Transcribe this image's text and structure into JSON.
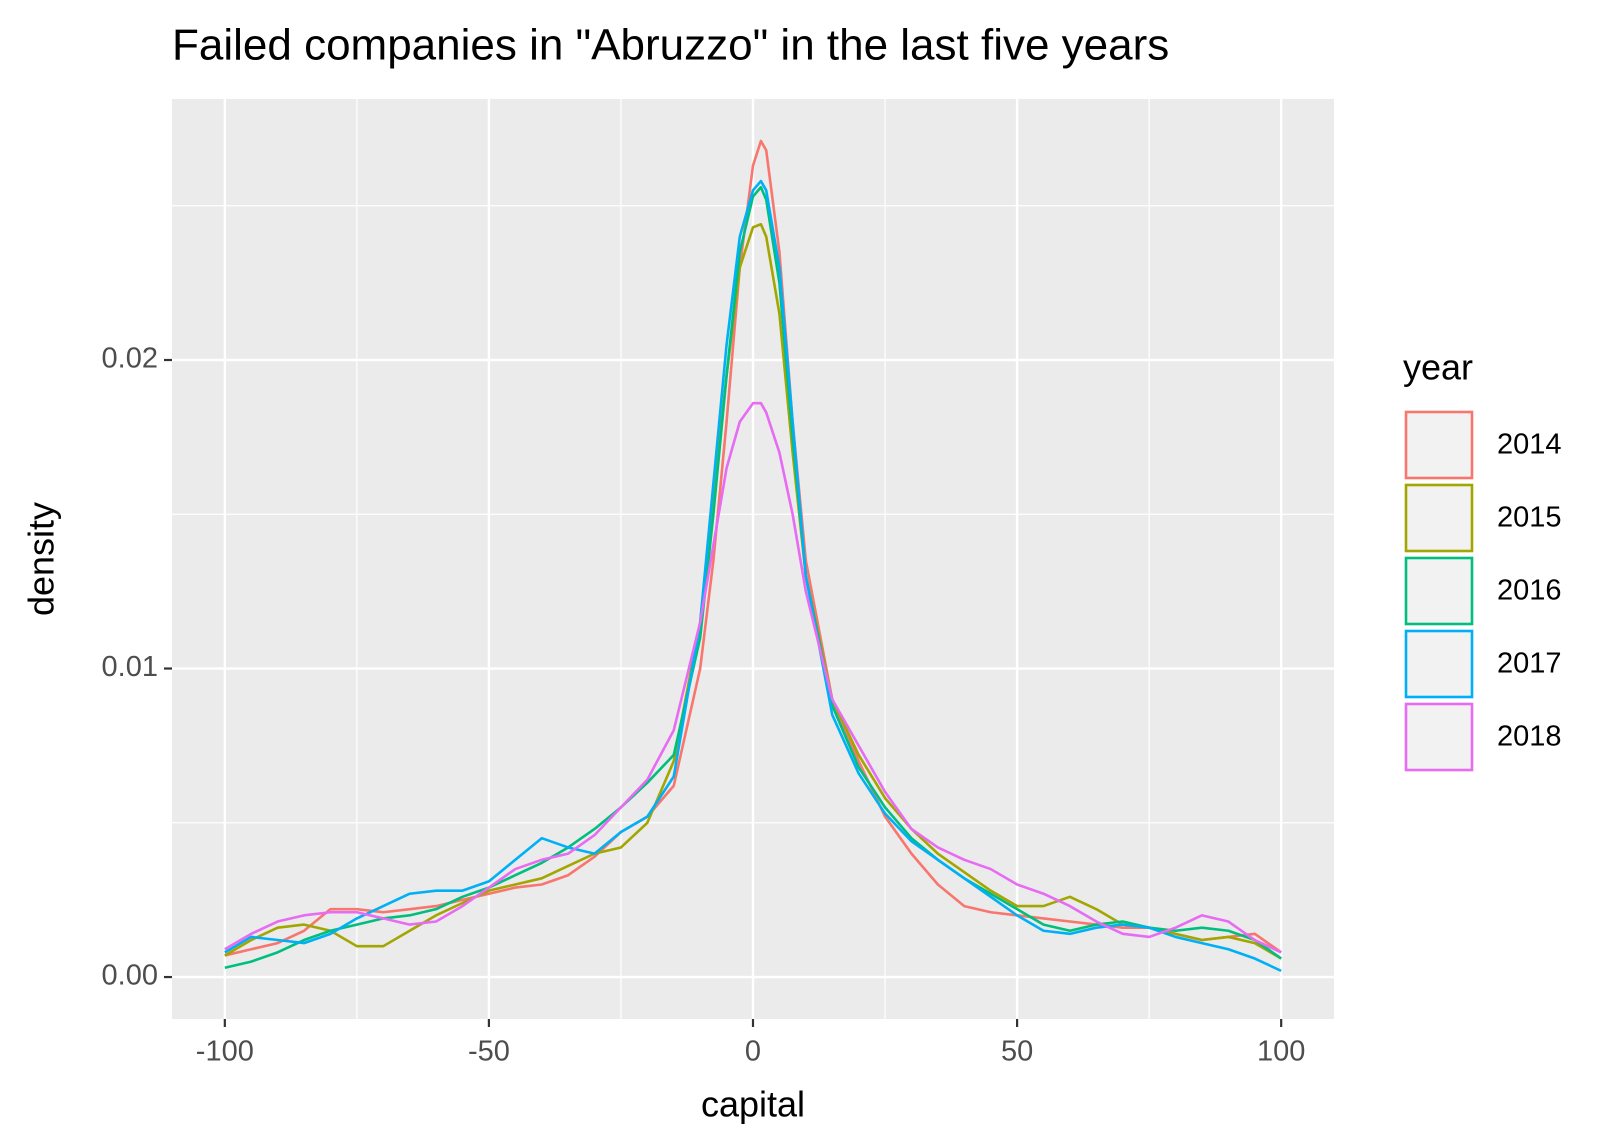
{
  "chart_data": {
    "type": "line",
    "title": "Failed companies in \"Abruzzo\" in the last five years",
    "x_label": "capital",
    "y_label": "density",
    "legend_title": "year",
    "legend_position": "right",
    "grid": true,
    "xlim": [
      -110,
      110
    ],
    "ylim": [
      -0.00136,
      0.02846
    ],
    "xticks": [
      -100,
      -50,
      0,
      50,
      100
    ],
    "yticks": [
      {
        "value": 0,
        "label": "0.00"
      },
      0.01,
      0.02
    ],
    "x_minor_grid": [
      -75,
      -25,
      25,
      75
    ],
    "y_minor_grid": [
      0.005,
      0.015,
      0.025
    ],
    "x": [
      -100,
      -95,
      -90,
      -85,
      -80,
      -75,
      -70,
      -65,
      -60,
      -55,
      -50,
      -45,
      -40,
      -35,
      -30,
      -25,
      -20,
      -15,
      -10,
      -7.5,
      -5,
      -2.5,
      0,
      1.5,
      2.5,
      5,
      7.5,
      10,
      15,
      20,
      25,
      30,
      35,
      40,
      45,
      50,
      55,
      60,
      65,
      70,
      75,
      80,
      85,
      90,
      95,
      100
    ],
    "series": [
      {
        "name": "2014",
        "color": "#F8766D",
        "values": [
          0.0007,
          0.0009,
          0.0011,
          0.0015,
          0.0022,
          0.0022,
          0.0021,
          0.0022,
          0.0023,
          0.0025,
          0.0027,
          0.0029,
          0.003,
          0.0033,
          0.0039,
          0.0047,
          0.0052,
          0.0062,
          0.01,
          0.0135,
          0.018,
          0.023,
          0.0263,
          0.0271,
          0.0268,
          0.0235,
          0.018,
          0.0135,
          0.009,
          0.007,
          0.0052,
          0.004,
          0.003,
          0.0023,
          0.0021,
          0.002,
          0.0019,
          0.0018,
          0.0017,
          0.0016,
          0.0016,
          0.0014,
          0.0012,
          0.0013,
          0.0014,
          0.0008
        ]
      },
      {
        "name": "2015",
        "color": "#A3A500",
        "values": [
          0.0007,
          0.0012,
          0.0016,
          0.0017,
          0.0015,
          0.001,
          0.001,
          0.0015,
          0.002,
          0.0024,
          0.0028,
          0.003,
          0.0032,
          0.0036,
          0.004,
          0.0042,
          0.005,
          0.007,
          0.0115,
          0.0155,
          0.0195,
          0.023,
          0.0243,
          0.0244,
          0.024,
          0.0215,
          0.017,
          0.013,
          0.009,
          0.0072,
          0.0058,
          0.0048,
          0.004,
          0.0034,
          0.0028,
          0.0023,
          0.0023,
          0.0026,
          0.0022,
          0.0017,
          0.0016,
          0.0014,
          0.0012,
          0.0013,
          0.0011,
          0.0006
        ]
      },
      {
        "name": "2016",
        "color": "#00BF7D",
        "values": [
          0.0003,
          0.0005,
          0.0008,
          0.0012,
          0.0015,
          0.0017,
          0.0019,
          0.002,
          0.0022,
          0.0026,
          0.0029,
          0.0033,
          0.0037,
          0.0042,
          0.0048,
          0.0055,
          0.0063,
          0.0072,
          0.011,
          0.015,
          0.0195,
          0.0235,
          0.0253,
          0.0256,
          0.0252,
          0.0225,
          0.0175,
          0.013,
          0.0088,
          0.0068,
          0.0055,
          0.0045,
          0.0038,
          0.0032,
          0.0027,
          0.0022,
          0.0017,
          0.0015,
          0.0017,
          0.0018,
          0.0016,
          0.0015,
          0.0016,
          0.0015,
          0.0012,
          0.0006
        ]
      },
      {
        "name": "2017",
        "color": "#00B0F6",
        "values": [
          0.0008,
          0.0013,
          0.0012,
          0.0011,
          0.0014,
          0.0019,
          0.0023,
          0.0027,
          0.0028,
          0.0028,
          0.0031,
          0.0038,
          0.0045,
          0.0042,
          0.004,
          0.0047,
          0.0052,
          0.0065,
          0.0115,
          0.016,
          0.0205,
          0.024,
          0.0255,
          0.0258,
          0.0255,
          0.023,
          0.018,
          0.013,
          0.0085,
          0.0066,
          0.0053,
          0.0044,
          0.0038,
          0.0032,
          0.0026,
          0.002,
          0.0015,
          0.0014,
          0.0016,
          0.0017,
          0.0016,
          0.0013,
          0.0011,
          0.0009,
          0.0006,
          0.0002
        ]
      },
      {
        "name": "2018",
        "color": "#E76BF3",
        "values": [
          0.0009,
          0.0014,
          0.0018,
          0.002,
          0.0021,
          0.0021,
          0.0019,
          0.0017,
          0.0018,
          0.0023,
          0.0029,
          0.0035,
          0.0038,
          0.004,
          0.0046,
          0.0055,
          0.0064,
          0.008,
          0.0115,
          0.014,
          0.0165,
          0.018,
          0.0186,
          0.0186,
          0.0183,
          0.017,
          0.015,
          0.0125,
          0.009,
          0.0075,
          0.006,
          0.0048,
          0.0042,
          0.0038,
          0.0035,
          0.003,
          0.0027,
          0.0023,
          0.0018,
          0.0014,
          0.0013,
          0.0016,
          0.002,
          0.0018,
          0.0012,
          0.0008
        ]
      }
    ]
  }
}
